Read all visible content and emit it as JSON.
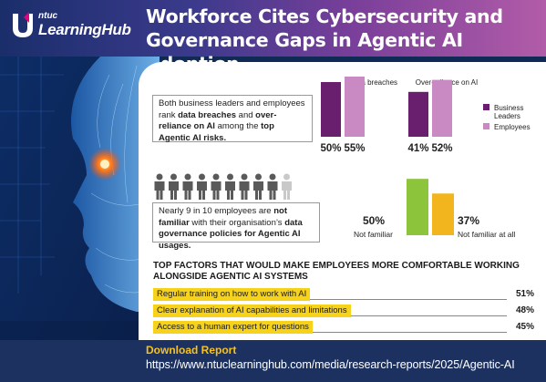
{
  "brand": {
    "top": "ntuc",
    "name": "LearningHub"
  },
  "title_lines": [
    "Workforce Cites Cybersecurity and",
    "Governance Gaps in Agentic AI Adoption"
  ],
  "section1": {
    "text_parts": [
      {
        "t": "Both business leaders and employees rank ",
        "bold": false
      },
      {
        "t": "data breaches",
        "bold": true
      },
      {
        "t": " and ",
        "bold": false
      },
      {
        "t": "over-reliance on AI",
        "bold": true
      },
      {
        "t": " among the ",
        "bold": false
      },
      {
        "t": "top Agentic AI risks.",
        "bold": true
      }
    ]
  },
  "section2": {
    "text_parts": [
      {
        "t": "Nearly 9 in 10 employees are ",
        "bold": false
      },
      {
        "t": "not familiar",
        "bold": true
      },
      {
        "t": " with their organisation’s ",
        "bold": false
      },
      {
        "t": "data governance policies for Agentic AI usages.",
        "bold": true
      }
    ],
    "people_total": 10,
    "people_highlighted": 9
  },
  "section3": {
    "heading": "TOP FACTORS THAT WOULD MAKE EMPLOYEES MORE COMFORTABLE WORKING ALONGSIDE AGENTIC AI SYSTEMS"
  },
  "footer": {
    "label": "Download Report",
    "url": "https://www.ntuclearninghub.com/media/research-reports/2025/Agentic-AI"
  },
  "colors": {
    "business_leaders": "#6a1f6e",
    "employees": "#c98ac4",
    "green": "#8cc43c",
    "yellow": "#f2b51d",
    "highlight": "#f6d21b"
  },
  "chart_data": [
    {
      "type": "bar",
      "categories": [
        "Data breaches",
        "Over-reliance on AI"
      ],
      "series": [
        {
          "name": "Business Leaders",
          "values": [
            50,
            41
          ]
        },
        {
          "name": "Employees",
          "values": [
            55,
            52
          ]
        }
      ],
      "value_labels": [
        [
          "50%",
          "41%"
        ],
        [
          "55%",
          "52%"
        ]
      ],
      "ylim": [
        0,
        60
      ],
      "legend": "right"
    },
    {
      "type": "bar",
      "categories": [
        "Not familiar",
        "Not familiar at all"
      ],
      "values": [
        50,
        37
      ],
      "value_labels": [
        "50%",
        "37%"
      ],
      "ylim": [
        0,
        55
      ]
    },
    {
      "type": "bar",
      "categories": [
        "Regular training on how to work with AI",
        "Clear explanation of AI capabilities and limitations",
        "Access to a human expert for questions"
      ],
      "values": [
        51,
        48,
        45
      ],
      "value_labels": [
        "51%",
        "48%",
        "45%"
      ]
    }
  ]
}
